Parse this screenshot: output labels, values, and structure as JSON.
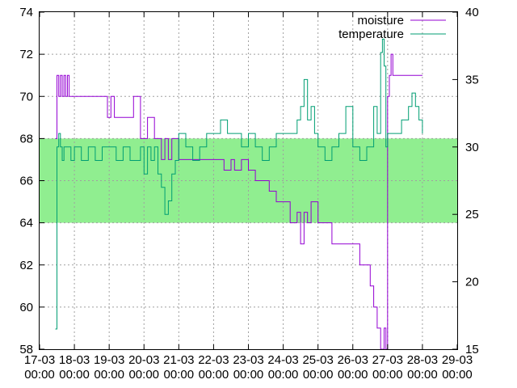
{
  "chart_data": {
    "type": "line",
    "title": "",
    "xlabel": "",
    "ylabel": "",
    "y2label": "",
    "grid": true,
    "legend_position": "top-right",
    "x_tick_labels": [
      [
        "17-03",
        "00:00"
      ],
      [
        "18-03",
        "00:00"
      ],
      [
        "19-03",
        "00:00"
      ],
      [
        "20-03",
        "00:00"
      ],
      [
        "21-03",
        "00:00"
      ],
      [
        "22-03",
        "00:00"
      ],
      [
        "23-03",
        "00:00"
      ],
      [
        "24-03",
        "00:00"
      ],
      [
        "25-03",
        "00:00"
      ],
      [
        "26-03",
        "00:00"
      ],
      [
        "27-03",
        "00:00"
      ],
      [
        "28-03",
        "00:00"
      ],
      [
        "29-03",
        "00:00"
      ]
    ],
    "xlim": [
      0,
      12
    ],
    "ylim": [
      58,
      74
    ],
    "yticks": [
      58,
      60,
      62,
      64,
      66,
      68,
      70,
      72,
      74
    ],
    "y2lim": [
      15,
      40
    ],
    "y2ticks": [
      15,
      20,
      25,
      30,
      35,
      40
    ],
    "band": {
      "y_from": 64,
      "y_to": 68,
      "color": "#90ee90"
    },
    "series": [
      {
        "name": "moisture",
        "axis": "left",
        "color": "#9400d3",
        "x": [
          0.45,
          0.5,
          0.55,
          0.6,
          0.65,
          0.7,
          0.75,
          0.8,
          0.85,
          0.9,
          1.0,
          1.5,
          1.95,
          2.05,
          2.15,
          2.3,
          2.7,
          2.9,
          3.1,
          3.3,
          3.5,
          3.6,
          3.7,
          3.8,
          4.0,
          4.2,
          4.3,
          4.4,
          4.6,
          5.0,
          5.3,
          5.5,
          5.6,
          5.7,
          5.8,
          6.0,
          6.2,
          6.4,
          6.6,
          6.8,
          7.0,
          7.2,
          7.4,
          7.5,
          7.6,
          7.7,
          7.8,
          8.0,
          8.2,
          8.4,
          8.6,
          8.8,
          9.0,
          9.2,
          9.5,
          9.6,
          9.7,
          9.8,
          9.9,
          9.95,
          10.0,
          10.05,
          10.1,
          10.15,
          10.2,
          10.25,
          10.3,
          10.5,
          11.0
        ],
        "y": [
          68,
          71,
          70,
          71,
          70,
          71,
          70,
          71,
          70,
          70,
          70,
          70,
          69,
          70,
          69,
          69,
          70,
          68,
          69,
          68,
          67,
          68,
          67,
          68,
          67,
          67,
          67,
          67,
          67,
          67,
          66.5,
          67,
          66.5,
          66.5,
          67,
          66.5,
          66,
          66,
          65.5,
          65,
          65,
          64,
          64.5,
          63,
          64.5,
          64,
          65,
          64,
          64,
          63,
          63,
          63,
          63,
          62,
          61,
          60,
          59,
          58,
          59,
          58,
          70,
          71,
          72,
          71,
          71,
          71,
          71,
          71,
          71
        ]
      },
      {
        "name": "temperature",
        "axis": "right",
        "color": "#009e73",
        "x": [
          0.45,
          0.5,
          0.55,
          0.6,
          0.65,
          0.7,
          0.8,
          0.9,
          1.0,
          1.2,
          1.4,
          1.6,
          1.8,
          2.0,
          2.2,
          2.4,
          2.6,
          2.8,
          2.9,
          3.0,
          3.1,
          3.2,
          3.3,
          3.4,
          3.5,
          3.6,
          3.7,
          3.8,
          3.9,
          4.0,
          4.2,
          4.4,
          4.6,
          4.8,
          5.0,
          5.2,
          5.4,
          5.6,
          5.8,
          6.0,
          6.2,
          6.4,
          6.6,
          6.8,
          7.0,
          7.2,
          7.4,
          7.5,
          7.6,
          7.7,
          7.8,
          7.9,
          8.0,
          8.2,
          8.4,
          8.6,
          8.8,
          9.0,
          9.2,
          9.4,
          9.6,
          9.7,
          9.8,
          9.85,
          9.9,
          9.95,
          10.0,
          10.2,
          10.4,
          10.6,
          10.7,
          10.8,
          10.9,
          11.0
        ],
        "y": [
          16.5,
          30,
          31,
          30,
          29,
          30,
          30,
          29,
          30,
          29,
          30,
          29,
          30,
          30,
          29,
          30,
          29,
          29,
          30,
          28,
          30,
          29,
          30,
          28,
          27,
          25,
          26,
          28,
          29,
          31,
          30,
          29,
          30,
          31,
          31,
          32,
          31,
          31,
          30,
          31,
          30,
          29,
          30,
          31,
          31,
          31,
          32,
          33,
          35,
          32,
          33,
          31,
          30,
          29,
          30,
          31,
          33,
          30,
          29,
          30,
          33,
          31,
          37,
          38,
          36,
          30,
          31,
          31,
          32,
          33,
          34,
          33,
          32,
          31
        ]
      }
    ]
  }
}
